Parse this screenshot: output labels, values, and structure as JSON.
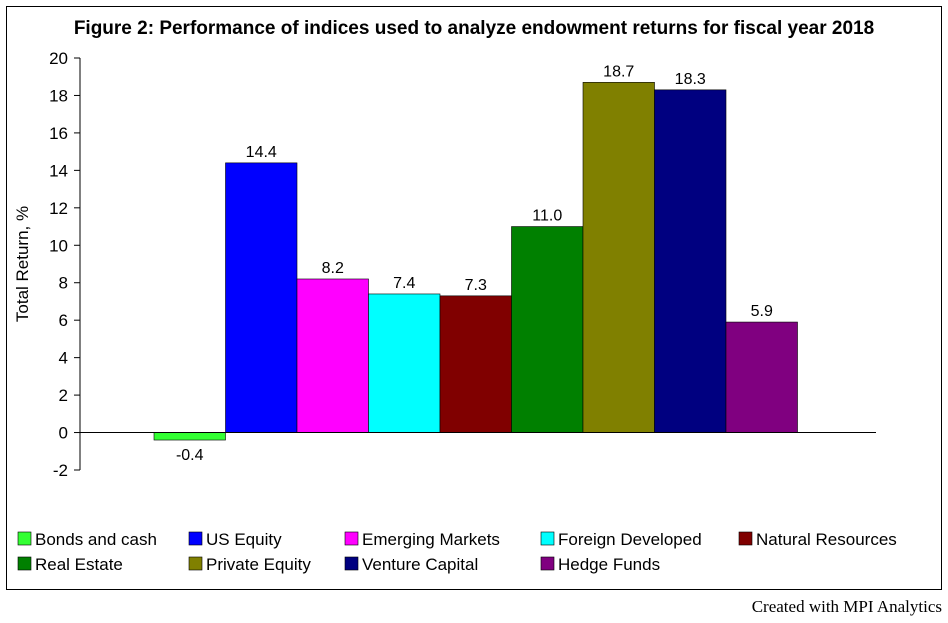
{
  "chart_data": {
    "type": "bar",
    "title": "Figure 2: Performance of indices used to analyze endowment returns for fiscal year 2018",
    "ylabel": "Total Return, %",
    "xlabel": "",
    "ylim": [
      -2,
      20
    ],
    "yticks": [
      -2,
      0,
      2,
      4,
      6,
      8,
      10,
      12,
      14,
      16,
      18,
      20
    ],
    "grid": false,
    "legend_position": "bottom",
    "series": [
      {
        "name": "Bonds and cash",
        "value": -0.4,
        "label": "-0.4",
        "color": "#33ff33"
      },
      {
        "name": "US Equity",
        "value": 14.4,
        "label": "14.4",
        "color": "#0000ff"
      },
      {
        "name": "Emerging Markets",
        "value": 8.2,
        "label": "8.2",
        "color": "#ff00ff"
      },
      {
        "name": "Foreign Developed",
        "value": 7.4,
        "label": "7.4",
        "color": "#00ffff"
      },
      {
        "name": "Natural Resources",
        "value": 7.3,
        "label": "7.3",
        "color": "#800000"
      },
      {
        "name": "Real Estate",
        "value": 11.0,
        "label": "11.0",
        "color": "#008000"
      },
      {
        "name": "Private Equity",
        "value": 18.7,
        "label": "18.7",
        "color": "#808000"
      },
      {
        "name": "Venture Capital",
        "value": 18.3,
        "label": "18.3",
        "color": "#000080"
      },
      {
        "name": "Hedge Funds",
        "value": 5.9,
        "label": "5.9",
        "color": "#800080"
      }
    ]
  },
  "footer": {
    "credit": "Created with MPI Analytics"
  }
}
